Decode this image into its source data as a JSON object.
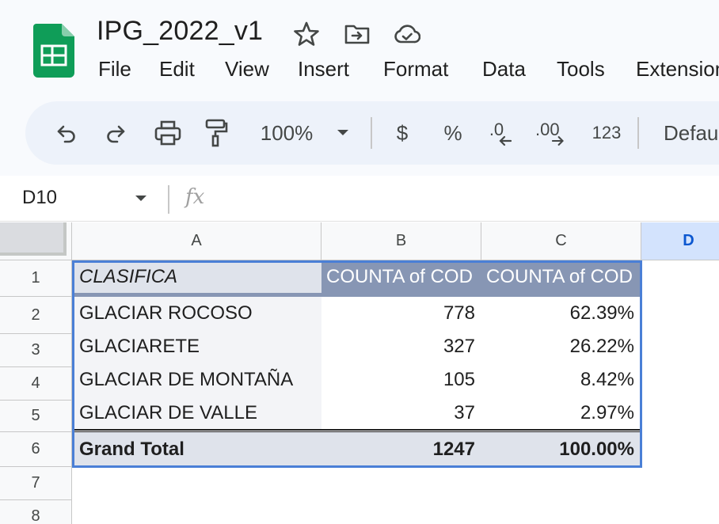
{
  "document": {
    "title": "IPG_2022_v1"
  },
  "menu": [
    "File",
    "Edit",
    "View",
    "Insert",
    "Format",
    "Data",
    "Tools",
    "Extensions"
  ],
  "toolbar": {
    "zoom": "100%",
    "currency": "$",
    "percent": "%",
    "decrease_decimal": ".0",
    "increase_decimal": ".00",
    "number_format": "123",
    "font": "Default"
  },
  "formula_bar": {
    "name_box": "D10",
    "fx": "fx"
  },
  "columns": [
    "A",
    "B",
    "C",
    "D"
  ],
  "rows": [
    "1",
    "2",
    "3",
    "4",
    "5",
    "6",
    "7",
    "8"
  ],
  "pivot": {
    "header": [
      "CLASIFICA",
      "COUNTA of COD",
      "COUNTA of COD"
    ],
    "data": [
      [
        "GLACIAR ROCOSO",
        "778",
        "62.39%"
      ],
      [
        "GLACIARETE",
        "327",
        "26.22%"
      ],
      [
        "GLACIAR DE MONTAÑA",
        "105",
        "8.42%"
      ],
      [
        "GLACIAR DE VALLE",
        "37",
        "2.97%"
      ]
    ],
    "total": [
      "Grand Total",
      "1247",
      "100.00%"
    ]
  },
  "colors": {
    "header_fill": "#8796b4",
    "label_fill": "#dfe3eb",
    "selection": "#4a7fd6",
    "sheets_green": "#0f9d58"
  }
}
